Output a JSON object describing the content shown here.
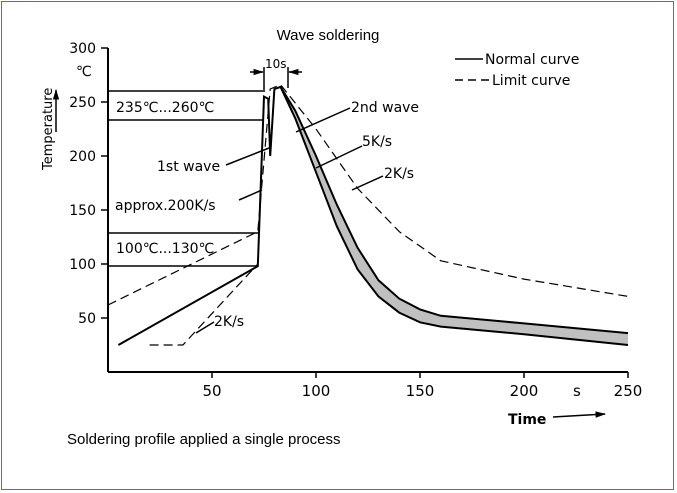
{
  "chart_data": {
    "type": "line",
    "title": "Wave soldering",
    "xlabel": "Time",
    "x_unit": "s",
    "ylabel": "Temperature",
    "y_unit": "℃",
    "xlim": [
      0,
      250
    ],
    "ylim": [
      0,
      300
    ],
    "x_ticks": [
      50,
      100,
      150,
      200,
      250
    ],
    "y_ticks": [
      50,
      100,
      150,
      200,
      250,
      300
    ],
    "legend": {
      "position": "top-right",
      "entries": [
        {
          "label": "Normal curve",
          "style": "solid"
        },
        {
          "label": "Limit curve",
          "style": "dashed"
        }
      ]
    },
    "series": [
      {
        "name": "Normal curve",
        "style": "solid",
        "points": [
          [
            5,
            25
          ],
          [
            72,
            98
          ],
          [
            75,
            255
          ],
          [
            77,
            253
          ],
          [
            78,
            200
          ],
          [
            80,
            262
          ],
          [
            83,
            264
          ],
          [
            90,
            235
          ],
          [
            100,
            185
          ],
          [
            110,
            135
          ],
          [
            120,
            95
          ],
          [
            130,
            70
          ],
          [
            140,
            55
          ],
          [
            150,
            46
          ],
          [
            160,
            42
          ],
          [
            200,
            35
          ],
          [
            250,
            25
          ]
        ]
      },
      {
        "name": "Normal curve (upper edge)",
        "style": "solid",
        "points": [
          [
            83,
            264
          ],
          [
            90,
            242
          ],
          [
            100,
            200
          ],
          [
            110,
            155
          ],
          [
            120,
            115
          ],
          [
            130,
            85
          ],
          [
            140,
            68
          ],
          [
            150,
            58
          ],
          [
            160,
            52
          ],
          [
            200,
            45
          ],
          [
            250,
            36
          ]
        ]
      },
      {
        "name": "Limit curve",
        "style": "dashed",
        "points": [
          [
            0,
            62
          ],
          [
            72,
            130
          ],
          [
            78,
            262
          ],
          [
            83,
            266
          ],
          [
            100,
            225
          ],
          [
            120,
            170
          ],
          [
            140,
            130
          ],
          [
            160,
            103
          ],
          [
            200,
            86
          ],
          [
            250,
            70
          ]
        ]
      },
      {
        "name": "Limit curve (lower)",
        "style": "dashed",
        "points": [
          [
            20,
            25
          ],
          [
            36,
            25
          ],
          [
            72,
            100
          ]
        ]
      }
    ],
    "annotations": {
      "band_high": "235℃...260℃",
      "band_low": "100℃...130℃",
      "first_wave": "1st wave",
      "second_wave": "2nd wave",
      "ramp_up": "approx.200K/s",
      "cool_5": "5K/s",
      "cool_2_upper": "2K/s",
      "cool_2_lower": "2K/s",
      "duration": "10s"
    }
  },
  "caption": "Soldering profile applied a single process"
}
